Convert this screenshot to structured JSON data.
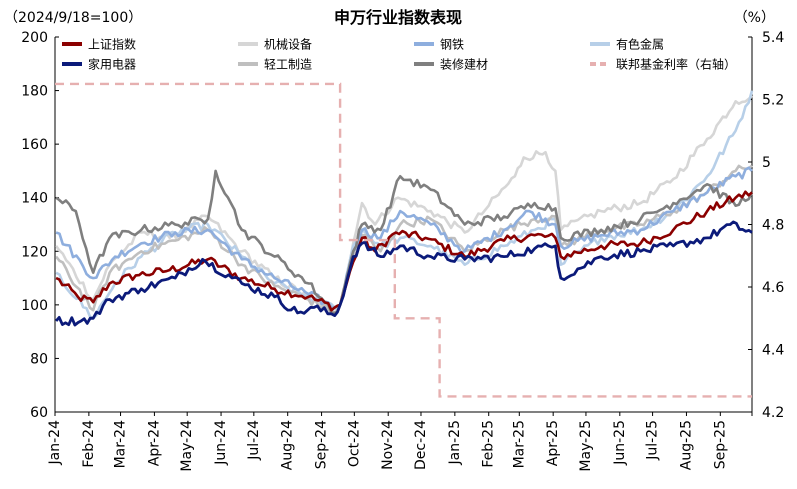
{
  "chart_data": {
    "type": "line",
    "title": "申万行业指数表现",
    "left_unit": "（2024/9/18=100）",
    "right_unit": "（%）",
    "ylim_left": [
      60,
      200
    ],
    "yticks_left": [
      60,
      80,
      100,
      120,
      140,
      160,
      180,
      200
    ],
    "ylim_right": [
      4.2,
      5.4
    ],
    "yticks_right": [
      "4.2",
      "4.4",
      "4.6",
      "4.8",
      "5",
      "5.2",
      "5.4"
    ],
    "x_start": "2024-01-01",
    "x_end": "2025-09-30",
    "x_ticks": [
      "Jan-24",
      "Feb-24",
      "Mar-24",
      "Apr-24",
      "May-24",
      "Jun-24",
      "Jul-24",
      "Aug-24",
      "Sep-24",
      "Oct-24",
      "Nov-24",
      "Dec-24",
      "Jan-25",
      "Feb-25",
      "Mar-25",
      "Apr-25",
      "May-25",
      "Jun-25",
      "Jul-25",
      "Aug-25",
      "Sep-25"
    ],
    "series": [
      {
        "name": "上证指数",
        "color": "#8b0000",
        "width": 2.6,
        "axis": "left",
        "points": [
          [
            "2024-01-02",
            110
          ],
          [
            "2024-01-22",
            103
          ],
          [
            "2024-02-05",
            101
          ],
          [
            "2024-02-20",
            108
          ],
          [
            "2024-03-15",
            111
          ],
          [
            "2024-04-15",
            113
          ],
          [
            "2024-05-20",
            117
          ],
          [
            "2024-06-20",
            110
          ],
          [
            "2024-07-20",
            106
          ],
          [
            "2024-08-20",
            103
          ],
          [
            "2024-09-13",
            99
          ],
          [
            "2024-09-18",
            100
          ],
          [
            "2024-09-30",
            116
          ],
          [
            "2024-10-08",
            125
          ],
          [
            "2024-10-20",
            120
          ],
          [
            "2024-11-08",
            127
          ],
          [
            "2024-12-05",
            125
          ],
          [
            "2025-01-10",
            118
          ],
          [
            "2025-02-15",
            124
          ],
          [
            "2025-03-15",
            126
          ],
          [
            "2025-04-03",
            125
          ],
          [
            "2025-04-08",
            118
          ],
          [
            "2025-05-15",
            122
          ],
          [
            "2025-06-20",
            123
          ],
          [
            "2025-07-20",
            128
          ],
          [
            "2025-08-20",
            135
          ],
          [
            "2025-09-15",
            140
          ],
          [
            "2025-09-30",
            142
          ]
        ]
      },
      {
        "name": "机械设备",
        "color": "#d6d6d6",
        "width": 2.6,
        "axis": "left",
        "points": [
          [
            "2024-01-02",
            122
          ],
          [
            "2024-02-05",
            102
          ],
          [
            "2024-02-20",
            115
          ],
          [
            "2024-03-20",
            127
          ],
          [
            "2024-04-15",
            125
          ],
          [
            "2024-05-20",
            133
          ],
          [
            "2024-06-20",
            120
          ],
          [
            "2024-07-20",
            110
          ],
          [
            "2024-08-20",
            103
          ],
          [
            "2024-09-13",
            97
          ],
          [
            "2024-09-18",
            100
          ],
          [
            "2024-09-30",
            123
          ],
          [
            "2024-10-08",
            138
          ],
          [
            "2024-10-20",
            130
          ],
          [
            "2024-11-10",
            140
          ],
          [
            "2024-12-10",
            135
          ],
          [
            "2025-01-10",
            127
          ],
          [
            "2025-02-01",
            137
          ],
          [
            "2025-02-25",
            148
          ],
          [
            "2025-03-05",
            155
          ],
          [
            "2025-03-25",
            157
          ],
          [
            "2025-04-03",
            150
          ],
          [
            "2025-04-08",
            128
          ],
          [
            "2025-05-15",
            135
          ],
          [
            "2025-06-20",
            138
          ],
          [
            "2025-07-20",
            147
          ],
          [
            "2025-08-20",
            162
          ],
          [
            "2025-09-15",
            176
          ],
          [
            "2025-09-30",
            178
          ]
        ]
      },
      {
        "name": "钢铁",
        "color": "#8eaede",
        "width": 2.6,
        "axis": "left",
        "points": [
          [
            "2024-01-02",
            127
          ],
          [
            "2024-02-05",
            110
          ],
          [
            "2024-02-25",
            118
          ],
          [
            "2024-03-20",
            123
          ],
          [
            "2024-04-20",
            127
          ],
          [
            "2024-05-20",
            128
          ],
          [
            "2024-06-20",
            117
          ],
          [
            "2024-07-20",
            110
          ],
          [
            "2024-08-20",
            104
          ],
          [
            "2024-09-13",
            99
          ],
          [
            "2024-09-18",
            100
          ],
          [
            "2024-09-30",
            120
          ],
          [
            "2024-10-08",
            128
          ],
          [
            "2024-10-25",
            125
          ],
          [
            "2024-11-12",
            135
          ],
          [
            "2024-12-10",
            130
          ],
          [
            "2025-01-10",
            120
          ],
          [
            "2025-02-15",
            128
          ],
          [
            "2025-03-10",
            135
          ],
          [
            "2025-04-03",
            130
          ],
          [
            "2025-04-08",
            122
          ],
          [
            "2025-05-15",
            126
          ],
          [
            "2025-06-20",
            128
          ],
          [
            "2025-07-20",
            135
          ],
          [
            "2025-08-20",
            142
          ],
          [
            "2025-09-15",
            148
          ],
          [
            "2025-09-30",
            150
          ]
        ]
      },
      {
        "name": "有色金属",
        "color": "#b7cfe8",
        "width": 2.6,
        "axis": "left",
        "points": [
          [
            "2024-01-02",
            112
          ],
          [
            "2024-02-05",
            95
          ],
          [
            "2024-02-25",
            108
          ],
          [
            "2024-03-20",
            118
          ],
          [
            "2024-04-20",
            127
          ],
          [
            "2024-05-20",
            130
          ],
          [
            "2024-06-20",
            118
          ],
          [
            "2024-07-20",
            108
          ],
          [
            "2024-08-20",
            103
          ],
          [
            "2024-09-13",
            99
          ],
          [
            "2024-09-18",
            100
          ],
          [
            "2024-09-30",
            122
          ],
          [
            "2024-10-08",
            128
          ],
          [
            "2024-10-25",
            122
          ],
          [
            "2024-11-12",
            125
          ],
          [
            "2024-12-10",
            122
          ],
          [
            "2025-01-10",
            115
          ],
          [
            "2025-02-15",
            122
          ],
          [
            "2025-03-15",
            128
          ],
          [
            "2025-04-03",
            132
          ],
          [
            "2025-04-08",
            115
          ],
          [
            "2025-05-15",
            125
          ],
          [
            "2025-06-20",
            128
          ],
          [
            "2025-07-20",
            135
          ],
          [
            "2025-08-20",
            148
          ],
          [
            "2025-09-15",
            165
          ],
          [
            "2025-09-30",
            180
          ]
        ]
      },
      {
        "name": "家用电器",
        "color": "#0b1a7a",
        "width": 2.8,
        "axis": "left",
        "points": [
          [
            "2024-01-02",
            94
          ],
          [
            "2024-01-25",
            94
          ],
          [
            "2024-02-05",
            95
          ],
          [
            "2024-02-20",
            102
          ],
          [
            "2024-03-20",
            106
          ],
          [
            "2024-04-20",
            110
          ],
          [
            "2024-05-15",
            117
          ],
          [
            "2024-06-20",
            108
          ],
          [
            "2024-07-20",
            103
          ],
          [
            "2024-08-10",
            97
          ],
          [
            "2024-08-25",
            99
          ],
          [
            "2024-09-13",
            96
          ],
          [
            "2024-09-18",
            100
          ],
          [
            "2024-09-30",
            118
          ],
          [
            "2024-10-08",
            123
          ],
          [
            "2024-10-25",
            118
          ],
          [
            "2024-11-12",
            122
          ],
          [
            "2024-12-10",
            118
          ],
          [
            "2025-01-10",
            117
          ],
          [
            "2025-02-15",
            118
          ],
          [
            "2025-03-15",
            121
          ],
          [
            "2025-04-03",
            122
          ],
          [
            "2025-04-08",
            110
          ],
          [
            "2025-05-15",
            118
          ],
          [
            "2025-06-20",
            120
          ],
          [
            "2025-07-20",
            122
          ],
          [
            "2025-08-20",
            125
          ],
          [
            "2025-09-10",
            130
          ],
          [
            "2025-09-30",
            127
          ]
        ]
      },
      {
        "name": "轻工制造",
        "color": "#bfbfbf",
        "width": 2.6,
        "axis": "left",
        "points": [
          [
            "2024-01-02",
            118
          ],
          [
            "2024-02-05",
            98
          ],
          [
            "2024-02-20",
            112
          ],
          [
            "2024-03-20",
            120
          ],
          [
            "2024-04-20",
            124
          ],
          [
            "2024-05-20",
            128
          ],
          [
            "2024-06-20",
            115
          ],
          [
            "2024-07-20",
            107
          ],
          [
            "2024-08-20",
            102
          ],
          [
            "2024-09-13",
            97
          ],
          [
            "2024-09-18",
            100
          ],
          [
            "2024-09-30",
            118
          ],
          [
            "2024-10-08",
            126
          ],
          [
            "2024-10-25",
            120
          ],
          [
            "2024-11-12",
            130
          ],
          [
            "2024-12-10",
            132
          ],
          [
            "2025-01-10",
            120
          ],
          [
            "2025-02-15",
            128
          ],
          [
            "2025-03-15",
            132
          ],
          [
            "2025-04-03",
            133
          ],
          [
            "2025-04-08",
            122
          ],
          [
            "2025-05-15",
            128
          ],
          [
            "2025-06-20",
            130
          ],
          [
            "2025-07-20",
            135
          ],
          [
            "2025-08-20",
            142
          ],
          [
            "2025-09-15",
            150
          ],
          [
            "2025-09-30",
            152
          ]
        ]
      },
      {
        "name": "装修建材",
        "color": "#7f7f7f",
        "width": 2.6,
        "axis": "left",
        "points": [
          [
            "2024-01-02",
            140
          ],
          [
            "2024-01-20",
            135
          ],
          [
            "2024-02-05",
            112
          ],
          [
            "2024-02-20",
            125
          ],
          [
            "2024-03-20",
            128
          ],
          [
            "2024-04-20",
            130
          ],
          [
            "2024-05-20",
            132
          ],
          [
            "2024-05-27",
            150
          ],
          [
            "2024-06-10",
            138
          ],
          [
            "2024-06-20",
            128
          ],
          [
            "2024-07-20",
            118
          ],
          [
            "2024-08-20",
            108
          ],
          [
            "2024-09-13",
            97
          ],
          [
            "2024-09-18",
            100
          ],
          [
            "2024-09-30",
            120
          ],
          [
            "2024-10-08",
            130
          ],
          [
            "2024-10-25",
            128
          ],
          [
            "2024-11-12",
            148
          ],
          [
            "2024-12-10",
            143
          ],
          [
            "2025-01-10",
            130
          ],
          [
            "2025-02-15",
            133
          ],
          [
            "2025-03-15",
            138
          ],
          [
            "2025-04-03",
            136
          ],
          [
            "2025-04-08",
            125
          ],
          [
            "2025-05-15",
            128
          ],
          [
            "2025-06-20",
            132
          ],
          [
            "2025-07-20",
            138
          ],
          [
            "2025-08-20",
            145
          ],
          [
            "2025-09-15",
            137
          ],
          [
            "2025-09-30",
            142
          ]
        ]
      }
    ],
    "rate_series": {
      "name": "联邦基金利率（右轴）",
      "color": "#e6b0b0",
      "width": 2.4,
      "dashed": true,
      "axis": "right",
      "points": [
        [
          "2024-01-01",
          5.25
        ],
        [
          "2024-09-18",
          5.25
        ],
        [
          "2024-09-18",
          4.75
        ],
        [
          "2024-11-07",
          4.75
        ],
        [
          "2024-11-07",
          4.5
        ],
        [
          "2024-12-18",
          4.5
        ],
        [
          "2024-12-18",
          4.25
        ],
        [
          "2025-09-30",
          4.25
        ]
      ]
    },
    "legend_order": [
      0,
      1,
      2,
      3,
      4,
      5,
      6,
      "rate"
    ]
  }
}
